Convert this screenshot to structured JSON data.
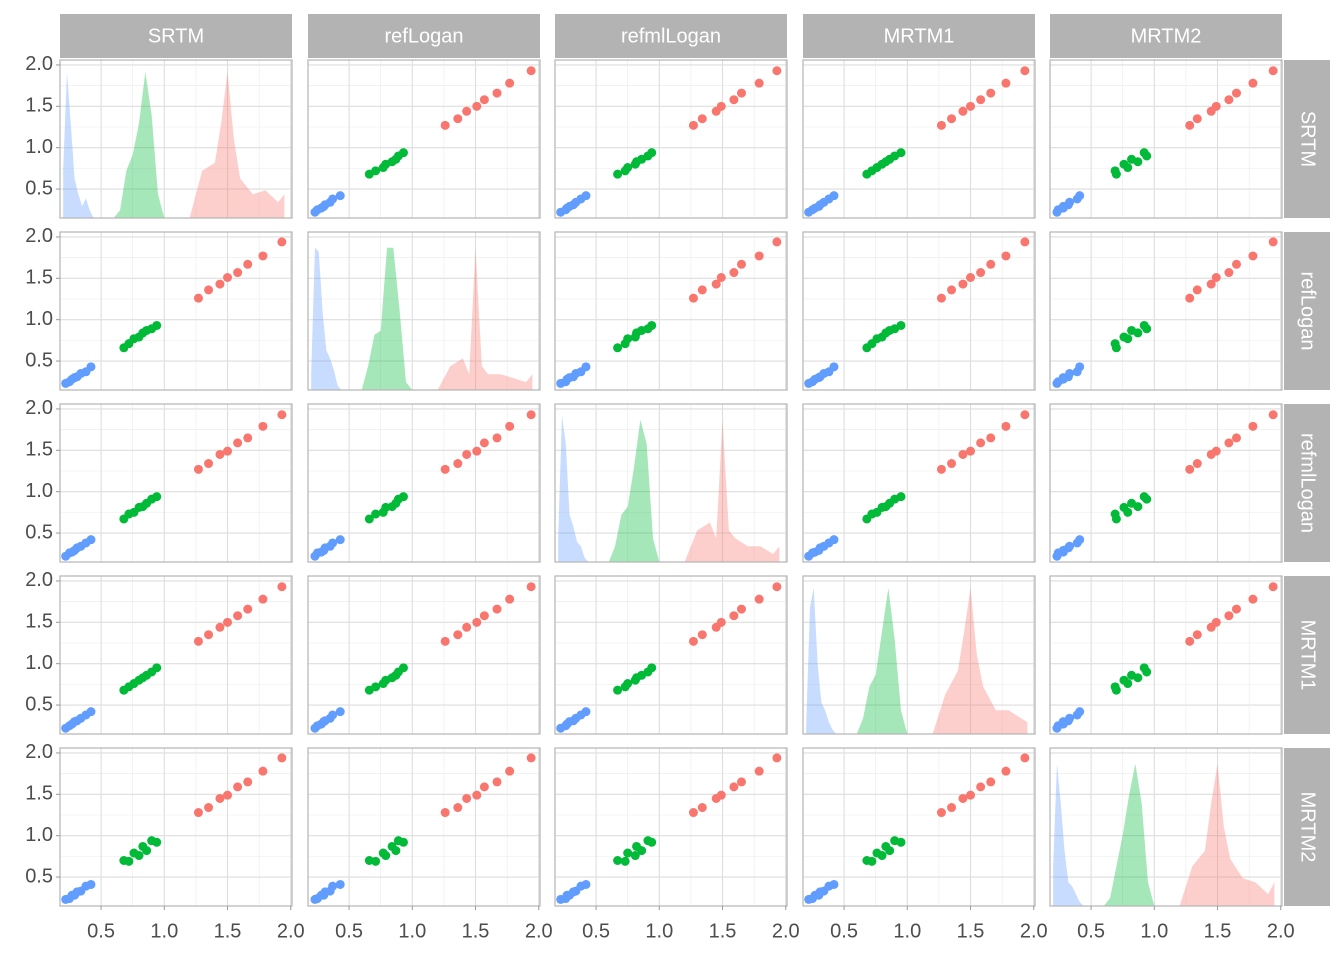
{
  "chart_data": {
    "type": "scatter-matrix",
    "variables": [
      "SRTM",
      "refLogan",
      "refmlLogan",
      "MRTM1",
      "MRTM2"
    ],
    "xlim": [
      0.175,
      2.01
    ],
    "ylim": [
      0.15,
      2.06
    ],
    "xticks": [
      {
        "value": 0.5,
        "label": "0.5"
      },
      {
        "value": 1,
        "label": "1.0"
      },
      {
        "value": 1.5,
        "label": "1.5"
      },
      {
        "value": 2,
        "label": "2.0"
      }
    ],
    "yticks": [
      {
        "value": 0.5,
        "label": "0.5"
      },
      {
        "value": 1,
        "label": "1.0"
      },
      {
        "value": 1.5,
        "label": "1.5"
      },
      {
        "value": 2,
        "label": "2.0"
      }
    ],
    "density_ylim": [
      0,
      2
    ],
    "grid": true,
    "series": [
      {
        "color": "#619CFF",
        "values": [
          [
            0.22,
            0.25,
            0.27,
            0.29,
            0.31,
            0.34,
            0.38,
            0.42
          ],
          [
            0.23,
            0.25,
            0.28,
            0.3,
            0.31,
            0.35,
            0.37,
            0.43
          ],
          [
            0.22,
            0.26,
            0.27,
            0.29,
            0.32,
            0.34,
            0.38,
            0.42
          ],
          [
            0.22,
            0.25,
            0.27,
            0.3,
            0.31,
            0.34,
            0.38,
            0.42
          ],
          [
            0.23,
            0.24,
            0.28,
            0.28,
            0.32,
            0.33,
            0.39,
            0.41
          ]
        ],
        "density_x": [
          0.2,
          0.23,
          0.26,
          0.29,
          0.32,
          0.35,
          0.38,
          0.41,
          0.44
        ],
        "density": [
          [
            0.6,
            1.85,
            1.2,
            0.5,
            0.3,
            0.15,
            0.25,
            0.1,
            0
          ],
          [
            0.2,
            1.8,
            1.75,
            1.0,
            0.5,
            0.4,
            0.25,
            0.05,
            0
          ],
          [
            0.3,
            1.85,
            1.5,
            0.6,
            0.45,
            0.25,
            0.2,
            0.05,
            0
          ],
          [
            0.1,
            1.6,
            1.85,
            0.9,
            0.4,
            0.3,
            0.15,
            0.05,
            0
          ],
          [
            0.5,
            1.8,
            1.3,
            0.7,
            0.3,
            0.25,
            0.15,
            0.05,
            0
          ]
        ]
      },
      {
        "color": "#00BA38",
        "values": [
          [
            0.68,
            0.72,
            0.76,
            0.8,
            0.83,
            0.86,
            0.9,
            0.94
          ],
          [
            0.66,
            0.71,
            0.77,
            0.79,
            0.84,
            0.87,
            0.89,
            0.93
          ],
          [
            0.67,
            0.73,
            0.75,
            0.81,
            0.82,
            0.86,
            0.91,
            0.94
          ],
          [
            0.68,
            0.72,
            0.76,
            0.8,
            0.83,
            0.86,
            0.9,
            0.95
          ],
          [
            0.7,
            0.69,
            0.79,
            0.76,
            0.87,
            0.82,
            0.94,
            0.92
          ]
        ],
        "density_x": [
          0.6,
          0.65,
          0.7,
          0.75,
          0.8,
          0.85,
          0.9,
          0.95,
          1.0
        ],
        "density": [
          [
            0,
            0.1,
            0.6,
            0.8,
            1.2,
            1.85,
            1.3,
            0.3,
            0
          ],
          [
            0,
            0.3,
            0.7,
            0.75,
            1.8,
            1.8,
            1.0,
            0.1,
            0
          ],
          [
            0,
            0.2,
            0.6,
            0.7,
            1.2,
            1.8,
            1.5,
            0.3,
            0
          ],
          [
            0,
            0.2,
            0.6,
            0.75,
            1.3,
            1.85,
            1.2,
            0.3,
            0
          ],
          [
            0,
            0.1,
            0.5,
            0.9,
            1.4,
            1.8,
            1.3,
            0.3,
            0
          ]
        ]
      },
      {
        "color": "#F8766D",
        "values": [
          [
            1.27,
            1.35,
            1.44,
            1.5,
            1.58,
            1.66,
            1.78,
            1.93
          ],
          [
            1.26,
            1.36,
            1.43,
            1.51,
            1.57,
            1.67,
            1.77,
            1.94
          ],
          [
            1.27,
            1.34,
            1.45,
            1.49,
            1.59,
            1.65,
            1.79,
            1.93
          ],
          [
            1.27,
            1.35,
            1.44,
            1.5,
            1.58,
            1.66,
            1.78,
            1.93
          ],
          [
            1.28,
            1.34,
            1.45,
            1.49,
            1.59,
            1.65,
            1.78,
            1.94
          ]
        ],
        "density_x": [
          1.2,
          1.3,
          1.4,
          1.45,
          1.5,
          1.55,
          1.6,
          1.7,
          1.8,
          1.9,
          1.95
        ],
        "density": [
          [
            0,
            0.6,
            0.7,
            1.2,
            1.85,
            1.0,
            0.5,
            0.3,
            0.35,
            0.2,
            0.3
          ],
          [
            0,
            0.3,
            0.4,
            0.2,
            1.8,
            0.3,
            0.2,
            0.2,
            0.15,
            0.1,
            0.2
          ],
          [
            0,
            0.4,
            0.5,
            0.3,
            1.8,
            0.4,
            0.3,
            0.2,
            0.2,
            0.1,
            0.2
          ],
          [
            0,
            0.5,
            0.8,
            1.3,
            1.85,
            1.0,
            0.6,
            0.3,
            0.3,
            0.2,
            0.15
          ],
          [
            0,
            0.5,
            0.7,
            1.3,
            1.8,
            1.0,
            0.6,
            0.35,
            0.3,
            0.15,
            0.3
          ]
        ]
      }
    ]
  }
}
